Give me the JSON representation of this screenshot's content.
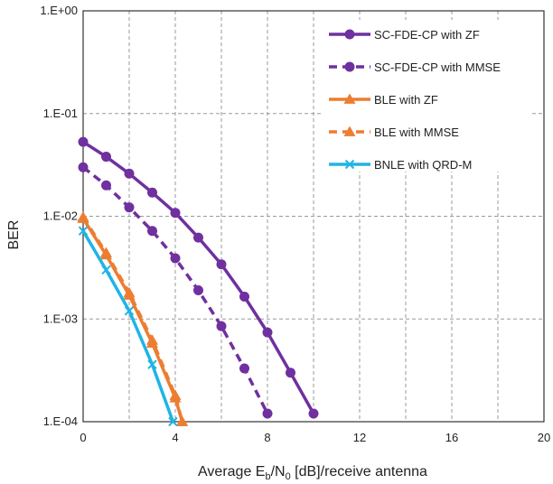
{
  "chart_data": {
    "type": "line",
    "title": "",
    "xlabel_parts": [
      "Average E",
      "b",
      "/N",
      "0",
      " [dB]/receive antenna"
    ],
    "ylabel": "BER",
    "xlim": [
      0,
      20
    ],
    "ylim": [
      0.0001,
      1
    ],
    "y_scale": "log",
    "grid": "dashed",
    "legend_position": "top-right",
    "x_ticks": [
      0,
      4,
      8,
      12,
      16,
      20
    ],
    "x_tick_labels": [
      "0",
      "4",
      "8",
      "12",
      "16",
      "20"
    ],
    "y_ticks": [
      1,
      0.1,
      0.01,
      0.001,
      0.0001
    ],
    "y_tick_labels": [
      "1.E+00",
      "1.E-01",
      "1.E-02",
      "1.E-03",
      "1.E-04"
    ],
    "series": [
      {
        "name": "SC-FDE-CP with ZF",
        "color": "#7030A0",
        "marker": "circle",
        "dashed": false,
        "x": [
          0,
          1,
          2,
          3,
          4,
          5,
          6,
          7,
          8,
          9,
          10
        ],
        "y": [
          0.053,
          0.038,
          0.026,
          0.017,
          0.0108,
          0.0062,
          0.0034,
          0.00165,
          0.00074,
          0.0003,
          0.00012
        ]
      },
      {
        "name": "SC-FDE-CP with MMSE",
        "color": "#7030A0",
        "marker": "circle",
        "dashed": true,
        "x": [
          0,
          1,
          2,
          3,
          4,
          5,
          6,
          7,
          8
        ],
        "y": [
          0.03,
          0.02,
          0.0122,
          0.0072,
          0.0039,
          0.0019,
          0.00085,
          0.00033,
          0.00012
        ]
      },
      {
        "name": "BLE with ZF",
        "color": "#ED7D31",
        "marker": "triangle",
        "dashed": false,
        "x": [
          0,
          1,
          2,
          3,
          4,
          4.3
        ],
        "y": [
          0.0095,
          0.0042,
          0.0017,
          0.00058,
          0.00017,
          0.0001
        ]
      },
      {
        "name": "BLE with MMSE",
        "color": "#ED7D31",
        "marker": "triangle",
        "dashed": true,
        "x": [
          0,
          1,
          2,
          3,
          4,
          4.3
        ],
        "y": [
          0.0098,
          0.0044,
          0.0018,
          0.00062,
          0.00018,
          0.0001
        ]
      },
      {
        "name": "BNLE with QRD-M",
        "color": "#1FB4E6",
        "marker": "x",
        "dashed": false,
        "x": [
          0,
          1,
          2,
          3,
          3.9
        ],
        "y": [
          0.0072,
          0.003,
          0.0012,
          0.00036,
          0.0001
        ]
      }
    ]
  }
}
